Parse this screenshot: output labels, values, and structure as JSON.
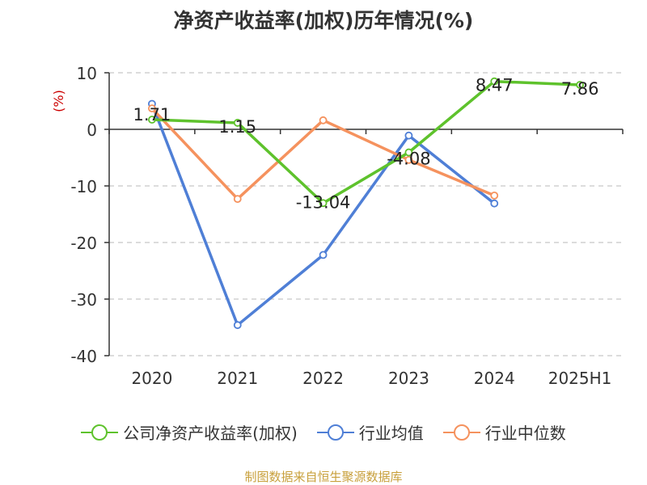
{
  "chart_data": {
    "type": "line",
    "title": "净资产收益率(加权)历年情况(%)",
    "ylabel": "(%)",
    "xlabel": "",
    "categories": [
      "2020",
      "2021",
      "2022",
      "2023",
      "2024",
      "2025H1"
    ],
    "ylim": [
      -40,
      10
    ],
    "yticks": [
      10,
      0,
      -10,
      -20,
      -30,
      -40
    ],
    "grid": true,
    "legend_position": "bottom",
    "series": [
      {
        "name": "公司净资产收益率(加权)",
        "color": "#5ec22c",
        "values": [
          1.71,
          1.15,
          -13.04,
          -4.08,
          8.47,
          7.86
        ],
        "labels": [
          "1.71",
          "1.15",
          "-13.04",
          "-4.08",
          "8.47",
          "7.86"
        ]
      },
      {
        "name": "行业均值",
        "color": "#4f7fd6",
        "values": [
          4.5,
          -34.6,
          -22.2,
          -1.1,
          -13.1,
          null
        ]
      },
      {
        "name": "行业中位数",
        "color": "#f5925e",
        "values": [
          3.7,
          -12.3,
          1.6,
          -5.4,
          -11.7,
          null
        ]
      }
    ]
  },
  "source": "制图数据来自恒生聚源数据库"
}
